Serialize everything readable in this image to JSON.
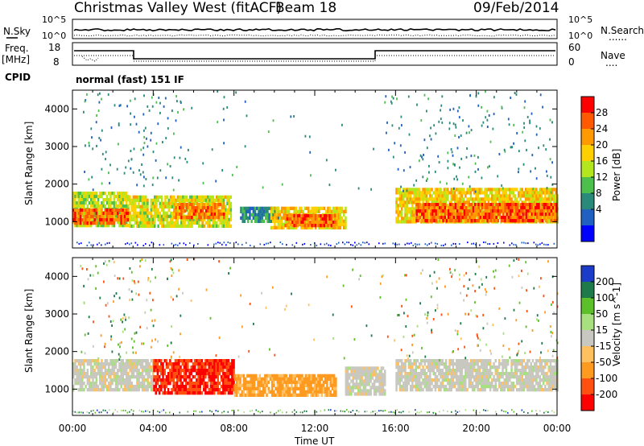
{
  "header": {
    "station": "Christmas Valley West (fitACF)",
    "beam": "Beam 18",
    "date": "09/Feb/2014"
  },
  "top_panels": {
    "nsky_label": "N.Sky",
    "nsearch_label": "N.Search",
    "nsearch_dots": "......",
    "nsky_ticks": [
      "10^5",
      "10^0"
    ],
    "nsearch_ticks": [
      "10^5",
      "10^0"
    ],
    "freq_label_1": "Freq.",
    "freq_label_2": "[MHz]",
    "freq_ticks": [
      "18",
      "8"
    ],
    "nave_label": "Nave",
    "nave_dots": "....",
    "nave_ticks": [
      "60",
      "0"
    ],
    "cpid_label": "CPID",
    "cpid_text": "normal (fast) 151 IF"
  },
  "power_scale": {
    "label": "Power [dB]",
    "ticks": [
      "28",
      "24",
      "20",
      "16",
      "12",
      "8",
      "4"
    ],
    "colors": [
      "#ff0000",
      "#ff5a00",
      "#ff9900",
      "#ffd000",
      "#b4e61e",
      "#4cbf4c",
      "#2a8a7a",
      "#2060c0",
      "#0000ff"
    ]
  },
  "velocity_scale": {
    "label": "Velocity [m s^-1]",
    "ticks": [
      "200",
      "100",
      "50",
      "15",
      "-15",
      "-50",
      "-100",
      "-200"
    ],
    "colors": [
      "#1a3cc8",
      "#1e7a4a",
      "#5cc02a",
      "#a8e080",
      "#c8c8c0",
      "#ffc060",
      "#ff9a20",
      "#ff5010",
      "#ff0000"
    ]
  },
  "axes": {
    "ylabel": "Slant Range [km]",
    "xlabel": "Time UT",
    "x_ticks": [
      "00:00",
      "04:00",
      "08:00",
      "12:00",
      "16:00",
      "20:00",
      "00:00"
    ],
    "y_ticks": [
      "4000",
      "3000",
      "2000",
      "1000"
    ]
  },
  "chart_data": [
    {
      "type": "heatmap",
      "title": "",
      "xlabel": "",
      "ylabel": "Slant Range [km]",
      "x_range_hours": [
        0,
        24
      ],
      "y_range_km": [
        300,
        4500
      ],
      "colorbar": "Power [dB]",
      "regions": [
        {
          "t": [
            0.0,
            2.8
          ],
          "r": [
            900,
            1800
          ],
          "value": 16
        },
        {
          "t": [
            0.0,
            2.8
          ],
          "r": [
            1000,
            1350
          ],
          "value": 28
        },
        {
          "t": [
            2.8,
            7.8
          ],
          "r": [
            900,
            1700
          ],
          "value": 18
        },
        {
          "t": [
            5.0,
            7.5
          ],
          "r": [
            1100,
            1500
          ],
          "value": 26
        },
        {
          "t": [
            8.3,
            10.2
          ],
          "r": [
            1000,
            1400
          ],
          "value": 8
        },
        {
          "t": [
            9.8,
            13.5
          ],
          "r": [
            800,
            1400
          ],
          "value": 20
        },
        {
          "t": [
            10.5,
            13.0
          ],
          "r": [
            900,
            1200
          ],
          "value": 28
        },
        {
          "t": [
            16.0,
            24.0
          ],
          "r": [
            1000,
            1900
          ],
          "value": 20
        },
        {
          "t": [
            17.0,
            24.0
          ],
          "r": [
            1050,
            1500
          ],
          "value": 28
        }
      ]
    },
    {
      "type": "heatmap",
      "title": "",
      "xlabel": "Time UT",
      "ylabel": "Slant Range [km]",
      "x_range_hours": [
        0,
        24
      ],
      "y_range_km": [
        300,
        4500
      ],
      "colorbar": "Velocity [m s^-1]",
      "regions": [
        {
          "t": [
            0.0,
            4.0
          ],
          "r": [
            1000,
            1800
          ],
          "value": 0
        },
        {
          "t": [
            4.0,
            8.0
          ],
          "r": [
            900,
            1800
          ],
          "value": -200
        },
        {
          "t": [
            8.0,
            13.0
          ],
          "r": [
            800,
            1400
          ],
          "value": -60
        },
        {
          "t": [
            13.5,
            15.5
          ],
          "r": [
            900,
            1600
          ],
          "value": 0
        },
        {
          "t": [
            16.0,
            24.0
          ],
          "r": [
            1000,
            1800
          ],
          "value": 0
        }
      ]
    }
  ]
}
